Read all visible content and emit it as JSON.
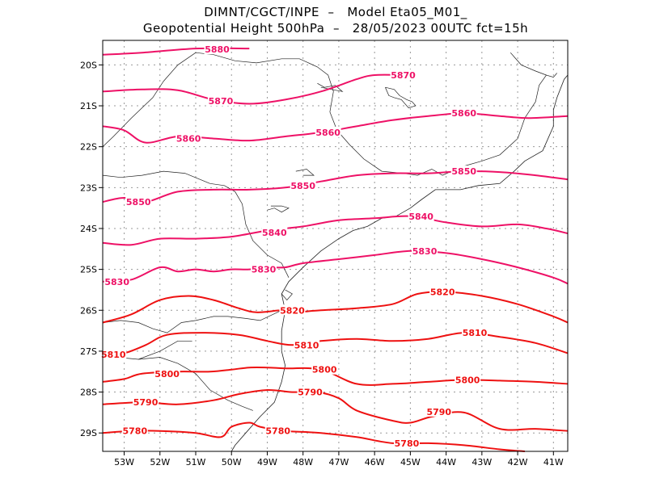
{
  "title_line1": "DIMNT/CGCT/INPE  –   Model Eta05_M01_",
  "title_line2": "Geopotential Height 500hPa  –   28/05/2023 00UTC fct=15h",
  "lat_labels": [
    "20S",
    "21S",
    "22S",
    "23S",
    "24S",
    "25S",
    "26S",
    "27S",
    "28S",
    "29S"
  ],
  "lon_labels": [
    "53W",
    "52W",
    "51W",
    "50W",
    "49W",
    "48W",
    "47W",
    "46W",
    "45W",
    "44W",
    "43W",
    "42W",
    "41W"
  ],
  "colors": {
    "magenta": "#ee1166",
    "red": "#ee1111",
    "grid": "#999999",
    "coast": "#222222"
  },
  "contours": [
    {
      "value": 5880,
      "label": "5880",
      "color": "magenta",
      "pts": [
        [
          -53.6,
          -19.75
        ],
        [
          -52.5,
          -19.7
        ],
        [
          -51,
          -19.6
        ],
        [
          -49.5,
          -19.6
        ]
      ],
      "labels": [
        [
          -50.4,
          -19.62
        ]
      ]
    },
    {
      "value": 5870,
      "label": "5870",
      "color": "magenta",
      "pts": [
        [
          -53.6,
          -20.65
        ],
        [
          -52.5,
          -20.6
        ],
        [
          -51.5,
          -20.62
        ],
        [
          -50.5,
          -20.85
        ],
        [
          -49.5,
          -20.95
        ],
        [
          -48.5,
          -20.85
        ],
        [
          -47.5,
          -20.65
        ],
        [
          -46.5,
          -20.35
        ],
        [
          -46,
          -20.25
        ],
        [
          -45.2,
          -20.25
        ]
      ],
      "labels": [
        [
          -50.3,
          -20.88
        ],
        [
          -45.2,
          -20.25
        ]
      ]
    },
    {
      "value": 5860,
      "label": "5860",
      "color": "magenta",
      "pts": [
        [
          -53.6,
          -21.5
        ],
        [
          -53,
          -21.6
        ],
        [
          -52.4,
          -21.9
        ],
        [
          -51.5,
          -21.75
        ],
        [
          -50.5,
          -21.8
        ],
        [
          -49.5,
          -21.85
        ],
        [
          -48.5,
          -21.75
        ],
        [
          -47.5,
          -21.65
        ],
        [
          -46.5,
          -21.5
        ],
        [
          -45.5,
          -21.35
        ],
        [
          -44.5,
          -21.25
        ],
        [
          -43.5,
          -21.18
        ],
        [
          -42.5,
          -21.25
        ],
        [
          -41.7,
          -21.3
        ],
        [
          -40.6,
          -21.25
        ]
      ],
      "labels": [
        [
          -51.2,
          -21.8
        ],
        [
          -47.3,
          -21.65
        ],
        [
          -43.5,
          -21.18
        ]
      ]
    },
    {
      "value": 5850,
      "label": "5850",
      "color": "magenta",
      "pts": [
        [
          -53.6,
          -23.35
        ],
        [
          -53,
          -23.25
        ],
        [
          -52.4,
          -23.35
        ],
        [
          -51.5,
          -23.1
        ],
        [
          -50.5,
          -23.05
        ],
        [
          -49.5,
          -23.05
        ],
        [
          -48.5,
          -23.0
        ],
        [
          -47.5,
          -22.85
        ],
        [
          -46.5,
          -22.7
        ],
        [
          -45.5,
          -22.65
        ],
        [
          -44.5,
          -22.65
        ],
        [
          -43.5,
          -22.6
        ],
        [
          -42.5,
          -22.62
        ],
        [
          -41.5,
          -22.7
        ],
        [
          -40.6,
          -22.8
        ]
      ],
      "labels": [
        [
          -52.6,
          -23.35
        ],
        [
          -48,
          -22.95
        ],
        [
          -43.5,
          -22.6
        ]
      ]
    },
    {
      "value": 5840,
      "label": "5840",
      "color": "magenta",
      "pts": [
        [
          -53.6,
          -24.35
        ],
        [
          -52.8,
          -24.4
        ],
        [
          -52,
          -24.25
        ],
        [
          -51,
          -24.25
        ],
        [
          -50,
          -24.2
        ],
        [
          -49,
          -24.05
        ],
        [
          -48,
          -23.95
        ],
        [
          -47,
          -23.8
        ],
        [
          -46,
          -23.75
        ],
        [
          -45,
          -23.7
        ],
        [
          -44,
          -23.85
        ],
        [
          -43,
          -23.95
        ],
        [
          -42,
          -23.9
        ],
        [
          -41.2,
          -24.0
        ],
        [
          -40.6,
          -24.12
        ]
      ],
      "labels": [
        [
          -48.8,
          -24.1
        ],
        [
          -44.7,
          -23.7
        ]
      ]
    },
    {
      "value": 5830,
      "label": "5830",
      "color": "magenta",
      "pts": [
        [
          -53.6,
          -25.3
        ],
        [
          -52.8,
          -25.25
        ],
        [
          -52,
          -24.95
        ],
        [
          -51.5,
          -25.05
        ],
        [
          -51,
          -25.0
        ],
        [
          -50.5,
          -25.05
        ],
        [
          -50,
          -25.0
        ],
        [
          -49.5,
          -25.0
        ],
        [
          -49,
          -24.95
        ],
        [
          -48.5,
          -24.95
        ],
        [
          -48,
          -24.85
        ],
        [
          -47,
          -24.75
        ],
        [
          -46,
          -24.65
        ],
        [
          -45,
          -24.55
        ],
        [
          -44,
          -24.6
        ],
        [
          -43,
          -24.75
        ],
        [
          -42,
          -24.95
        ],
        [
          -41,
          -25.2
        ],
        [
          -40.6,
          -25.35
        ]
      ],
      "labels": [
        [
          -53.2,
          -25.3
        ],
        [
          -49.1,
          -25.0
        ],
        [
          -44.6,
          -24.55
        ]
      ]
    },
    {
      "value": 5820,
      "label": "5820",
      "color": "red",
      "pts": [
        [
          -53.6,
          -26.3
        ],
        [
          -52.8,
          -26.1
        ],
        [
          -52,
          -25.75
        ],
        [
          -51.2,
          -25.65
        ],
        [
          -50.5,
          -25.75
        ],
        [
          -49.8,
          -25.95
        ],
        [
          -49.3,
          -26.05
        ],
        [
          -48.6,
          -26.0
        ],
        [
          -48.3,
          -26.05
        ],
        [
          -47.5,
          -26.0
        ],
        [
          -46.5,
          -25.95
        ],
        [
          -45.5,
          -25.85
        ],
        [
          -44.8,
          -25.6
        ],
        [
          -44,
          -25.55
        ],
        [
          -43,
          -25.65
        ],
        [
          -42,
          -25.85
        ],
        [
          -41,
          -26.15
        ],
        [
          -40.6,
          -26.3
        ]
      ],
      "labels": [
        [
          -48.3,
          -26.0
        ],
        [
          -44.1,
          -25.55
        ]
      ]
    },
    {
      "value": 5810,
      "label": "5810",
      "color": "red",
      "pts": [
        [
          -53.6,
          -27.1
        ],
        [
          -53,
          -27.05
        ],
        [
          -52.4,
          -26.85
        ],
        [
          -51.8,
          -26.6
        ],
        [
          -50.8,
          -26.55
        ],
        [
          -49.8,
          -26.6
        ],
        [
          -49,
          -26.75
        ],
        [
          -48.3,
          -26.85
        ],
        [
          -47.5,
          -26.75
        ],
        [
          -46.5,
          -26.7
        ],
        [
          -45.5,
          -26.75
        ],
        [
          -44.5,
          -26.7
        ],
        [
          -43.5,
          -26.55
        ],
        [
          -42.5,
          -26.65
        ],
        [
          -41.5,
          -26.8
        ],
        [
          -40.6,
          -27.05
        ]
      ],
      "labels": [
        [
          -53.3,
          -27.08
        ],
        [
          -47.9,
          -26.85
        ],
        [
          -43.2,
          -26.55
        ]
      ]
    },
    {
      "value": 5800,
      "label": "5800",
      "color": "red",
      "pts": [
        [
          -53.6,
          -27.75
        ],
        [
          -53,
          -27.68
        ],
        [
          -52.5,
          -27.55
        ],
        [
          -51.5,
          -27.5
        ],
        [
          -50.6,
          -27.5
        ],
        [
          -50,
          -27.45
        ],
        [
          -49.5,
          -27.4
        ],
        [
          -49,
          -27.4
        ],
        [
          -48.5,
          -27.42
        ],
        [
          -47.5,
          -27.45
        ],
        [
          -46.5,
          -27.8
        ],
        [
          -45.5,
          -27.8
        ],
        [
          -44.5,
          -27.75
        ],
        [
          -43.5,
          -27.7
        ],
        [
          -42.5,
          -27.72
        ],
        [
          -41.5,
          -27.75
        ],
        [
          -40.6,
          -27.8
        ]
      ],
      "labels": [
        [
          -51.8,
          -27.55
        ],
        [
          -47.4,
          -27.45
        ],
        [
          -43.4,
          -27.7
        ]
      ]
    },
    {
      "value": 5790,
      "label": "5790",
      "color": "red",
      "pts": [
        [
          -53.6,
          -28.3
        ],
        [
          -52.5,
          -28.25
        ],
        [
          -51.5,
          -28.3
        ],
        [
          -50.5,
          -28.2
        ],
        [
          -49.8,
          -28.05
        ],
        [
          -49,
          -27.95
        ],
        [
          -48.3,
          -28.0
        ],
        [
          -47.6,
          -28.0
        ],
        [
          -47,
          -28.15
        ],
        [
          -46.5,
          -28.45
        ],
        [
          -45.5,
          -28.7
        ],
        [
          -45,
          -28.75
        ],
        [
          -44.4,
          -28.6
        ],
        [
          -43.5,
          -28.5
        ],
        [
          -42.5,
          -28.9
        ],
        [
          -41.5,
          -28.9
        ],
        [
          -40.6,
          -28.95
        ]
      ],
      "labels": [
        [
          -52.4,
          -28.25
        ],
        [
          -47.8,
          -28.0
        ],
        [
          -44.2,
          -28.48
        ]
      ]
    },
    {
      "value": 5780,
      "label": "5780",
      "color": "red",
      "pts": [
        [
          -53.6,
          -29.0
        ],
        [
          -52.8,
          -28.95
        ],
        [
          -52,
          -28.95
        ],
        [
          -51,
          -29.0
        ],
        [
          -50.3,
          -29.1
        ],
        [
          -50,
          -28.85
        ],
        [
          -49.5,
          -28.75
        ],
        [
          -49.2,
          -28.85
        ],
        [
          -48.5,
          -28.95
        ],
        [
          -47.5,
          -29.0
        ],
        [
          -46.5,
          -29.1
        ],
        [
          -45.5,
          -29.25
        ],
        [
          -44.5,
          -29.25
        ],
        [
          -43.5,
          -29.3
        ],
        [
          -42.5,
          -29.4
        ],
        [
          -41.8,
          -29.45
        ]
      ],
      "labels": [
        [
          -52.7,
          -28.95
        ],
        [
          -48.7,
          -28.95
        ],
        [
          -45.1,
          -29.25
        ]
      ]
    }
  ],
  "coastline": [
    [
      -40.6,
      -20.25
    ],
    [
      -40.7,
      -20.35
    ],
    [
      -40.9,
      -20.8
    ],
    [
      -41.0,
      -21.1
    ],
    [
      -41.0,
      -21.5
    ],
    [
      -41.3,
      -22.1
    ],
    [
      -41.8,
      -22.35
    ],
    [
      -42.1,
      -22.6
    ],
    [
      -42.5,
      -22.9
    ],
    [
      -43.1,
      -22.95
    ],
    [
      -43.6,
      -23.05
    ],
    [
      -44.3,
      -23.05
    ],
    [
      -44.7,
      -23.3
    ],
    [
      -45.0,
      -23.5
    ],
    [
      -45.4,
      -23.7
    ],
    [
      -45.8,
      -23.75
    ],
    [
      -46.2,
      -23.95
    ],
    [
      -46.6,
      -24.05
    ],
    [
      -47.0,
      -24.25
    ],
    [
      -47.5,
      -24.55
    ],
    [
      -48.0,
      -24.95
    ],
    [
      -48.4,
      -25.3
    ],
    [
      -48.6,
      -25.6
    ],
    [
      -48.5,
      -26.0
    ],
    [
      -48.6,
      -26.5
    ],
    [
      -48.6,
      -27.0
    ],
    [
      -48.5,
      -27.35
    ],
    [
      -48.6,
      -27.75
    ],
    [
      -48.8,
      -28.25
    ],
    [
      -49.2,
      -28.6
    ],
    [
      -49.6,
      -29.0
    ],
    [
      -49.9,
      -29.3
    ],
    [
      -50.0,
      -29.45
    ]
  ],
  "borders": [
    [
      [
        -53.6,
        -27.0
      ],
      [
        -53.2,
        -27.15
      ],
      [
        -52.6,
        -27.2
      ],
      [
        -52.0,
        -27.15
      ],
      [
        -51.5,
        -27.3
      ],
      [
        -51.0,
        -27.55
      ],
      [
        -50.6,
        -27.95
      ],
      [
        -50.1,
        -28.2
      ],
      [
        -49.7,
        -28.35
      ],
      [
        -49.4,
        -28.45
      ]
    ],
    [
      [
        -53.6,
        -26.3
      ],
      [
        -53.1,
        -26.25
      ],
      [
        -52.6,
        -26.3
      ],
      [
        -52.2,
        -26.45
      ],
      [
        -51.8,
        -26.55
      ],
      [
        -51.4,
        -26.3
      ],
      [
        -51.0,
        -26.25
      ],
      [
        -50.5,
        -26.15
      ],
      [
        -50.1,
        -26.15
      ],
      [
        -49.6,
        -26.2
      ],
      [
        -49.2,
        -26.25
      ],
      [
        -48.6,
        -26.0
      ]
    ],
    [
      [
        -53.6,
        -22.7
      ],
      [
        -53.1,
        -22.75
      ],
      [
        -52.5,
        -22.7
      ],
      [
        -51.9,
        -22.6
      ],
      [
        -51.3,
        -22.65
      ],
      [
        -50.6,
        -22.9
      ],
      [
        -50.2,
        -22.95
      ],
      [
        -49.9,
        -23.1
      ],
      [
        -49.7,
        -23.4
      ],
      [
        -49.6,
        -23.9
      ],
      [
        -49.4,
        -24.3
      ],
      [
        -49.0,
        -24.65
      ],
      [
        -48.6,
        -24.85
      ],
      [
        -48.4,
        -25.2
      ]
    ],
    [
      [
        -51.0,
        -19.7
      ],
      [
        -51.5,
        -20.0
      ],
      [
        -51.9,
        -20.4
      ],
      [
        -52.2,
        -20.8
      ],
      [
        -52.8,
        -21.3
      ],
      [
        -53.3,
        -21.75
      ],
      [
        -53.6,
        -22.0
      ]
    ],
    [
      [
        -51.0,
        -19.7
      ],
      [
        -50.5,
        -19.75
      ],
      [
        -49.9,
        -19.9
      ],
      [
        -49.3,
        -19.95
      ],
      [
        -48.6,
        -19.85
      ],
      [
        -48.1,
        -19.85
      ],
      [
        -47.6,
        -20.05
      ],
      [
        -47.3,
        -20.25
      ],
      [
        -47.15,
        -20.65
      ],
      [
        -47.25,
        -21.15
      ],
      [
        -47.05,
        -21.6
      ],
      [
        -46.7,
        -21.95
      ],
      [
        -46.3,
        -22.3
      ],
      [
        -45.8,
        -22.6
      ],
      [
        -45.2,
        -22.65
      ],
      [
        -44.8,
        -22.7
      ],
      [
        -44.4,
        -22.55
      ],
      [
        -44.1,
        -22.7
      ],
      [
        -43.6,
        -22.5
      ],
      [
        -43.0,
        -22.35
      ],
      [
        -42.5,
        -22.2
      ],
      [
        -42.0,
        -21.8
      ],
      [
        -41.8,
        -21.3
      ],
      [
        -41.5,
        -20.9
      ],
      [
        -41.4,
        -20.5
      ],
      [
        -41.2,
        -20.25
      ],
      [
        -41.0,
        -20.3
      ],
      [
        -40.9,
        -20.2
      ]
    ],
    [
      [
        -52.6,
        -27.2
      ],
      [
        -52.0,
        -27.0
      ],
      [
        -51.5,
        -26.75
      ],
      [
        -51.1,
        -26.75
      ]
    ],
    [
      [
        -42.2,
        -19.7
      ],
      [
        -41.9,
        -20.0
      ],
      [
        -41.5,
        -20.15
      ],
      [
        -41.2,
        -20.25
      ]
    ]
  ],
  "lakes": [
    [
      [
        -45.7,
        -20.55
      ],
      [
        -45.6,
        -20.75
      ],
      [
        -45.45,
        -20.8
      ],
      [
        -45.25,
        -20.85
      ],
      [
        -45.05,
        -21.05
      ],
      [
        -44.85,
        -21.0
      ],
      [
        -44.95,
        -20.9
      ],
      [
        -45.1,
        -20.85
      ],
      [
        -45.3,
        -20.75
      ],
      [
        -45.45,
        -20.6
      ],
      [
        -45.7,
        -20.55
      ]
    ],
    [
      [
        -47.6,
        -20.45
      ],
      [
        -47.4,
        -20.55
      ],
      [
        -47.1,
        -20.5
      ],
      [
        -46.9,
        -20.65
      ],
      [
        -47.2,
        -20.6
      ],
      [
        -47.5,
        -20.55
      ]
    ],
    [
      [
        -49.0,
        -23.55
      ],
      [
        -48.8,
        -23.5
      ],
      [
        -48.6,
        -23.6
      ],
      [
        -48.4,
        -23.5
      ],
      [
        -48.6,
        -23.45
      ],
      [
        -48.9,
        -23.45
      ]
    ],
    [
      [
        -48.2,
        -22.6
      ],
      [
        -47.9,
        -22.55
      ],
      [
        -47.7,
        -22.7
      ],
      [
        -48.0,
        -22.7
      ]
    ],
    [
      [
        -48.5,
        -25.5
      ],
      [
        -48.3,
        -25.6
      ],
      [
        -48.45,
        -25.75
      ],
      [
        -48.6,
        -25.6
      ]
    ]
  ]
}
